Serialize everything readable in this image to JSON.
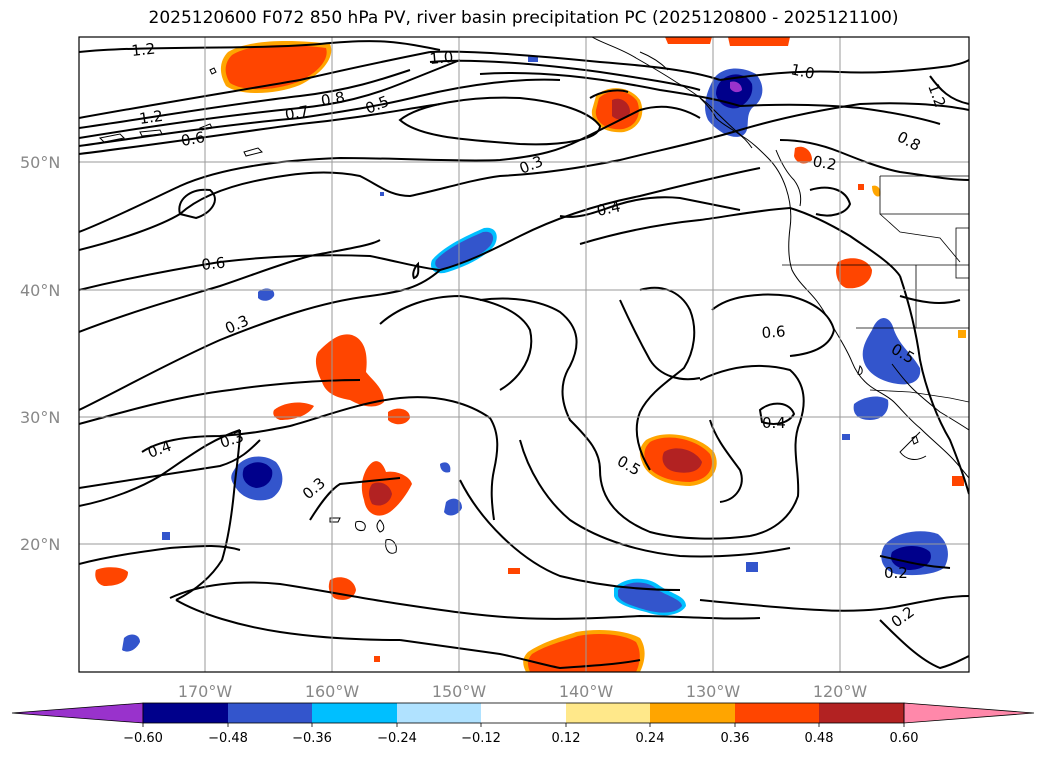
{
  "title": "2025120600 F072 850 hPa PV, river basin precipitation PC (2025120800 - 2025121100)",
  "lat_labels": [
    "50°N",
    "40°N",
    "30°N",
    "20°N"
  ],
  "lon_labels": [
    "170°W",
    "160°W",
    "150°W",
    "140°W",
    "130°W",
    "120°W"
  ],
  "colorbar": {
    "ticks": [
      "−0.60",
      "−0.48",
      "−0.36",
      "−0.24",
      "−0.12",
      "0.12",
      "0.24",
      "0.36",
      "0.48",
      "0.60"
    ],
    "colors": [
      "#9932cc",
      "#00008b",
      "#3355cc",
      "#00bfff",
      "#b0e2ff",
      "#ffffff",
      "#ffe88a",
      "#ffa500",
      "#ff4500",
      "#b22222",
      "#ff88aa"
    ],
    "extend": "both"
  },
  "pv_contour_labels": [
    "1.2",
    "1.0",
    "1.0",
    "1.2",
    "1.2",
    "0.7",
    "0.8",
    "0.5",
    "0.6",
    "0.3",
    "0.4",
    "0.8",
    "0.6",
    "0.3",
    "0.2",
    "0.6",
    "0.5",
    "0.4",
    "0.4",
    "0.3",
    "0.3",
    "0.5",
    "0.2",
    "0.2"
  ],
  "colors": {
    "positive_strong": "#ff4500",
    "positive_max": "#b22222",
    "negative_mid": "#3355cc",
    "negative_strong": "#00008b"
  }
}
